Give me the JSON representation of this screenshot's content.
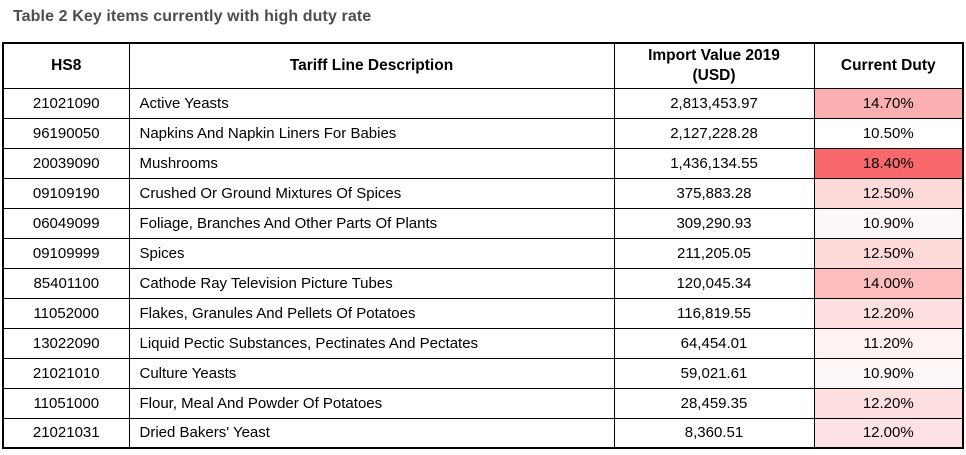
{
  "title": "Table 2 Key items currently with high duty rate",
  "colors": {
    "title_text": "#4d4d4d",
    "table_border": "#000000",
    "duty_scale_min": "#FFFFFF",
    "duty_scale_max": "#F8696B"
  },
  "table": {
    "columns": [
      "HS8",
      "Tariff Line Description",
      "Import Value 2019 (USD)",
      "Current Duty"
    ],
    "rows": [
      {
        "hs8": "21021090",
        "description": "Active Yeasts",
        "import_value": "2,813,453.97",
        "duty": "14.70%",
        "duty_bg": "#FBAFB0"
      },
      {
        "hs8": "96190050",
        "description": "Napkins And Napkin Liners For Babies",
        "import_value": "2,127,228.28",
        "duty": "10.50%",
        "duty_bg": "#FFFFFF"
      },
      {
        "hs8": "20039090",
        "description": "Mushrooms",
        "import_value": "1,436,134.55",
        "duty": "18.40%",
        "duty_bg": "#F8696B"
      },
      {
        "hs8": "09109190",
        "description": "Crushed Or Ground Mixtures Of Spices",
        "import_value": "375,883.28",
        "duty": "12.50%",
        "duty_bg": "#FDD9D9"
      },
      {
        "hs8": "06049099",
        "description": "Foliage, Branches And Other Parts Of Plants",
        "import_value": "309,290.93",
        "duty": "10.90%",
        "duty_bg": "#FEF7F7"
      },
      {
        "hs8": "09109999",
        "description": "Spices",
        "import_value": "211,205.05",
        "duty": "12.50%",
        "duty_bg": "#FDD9D9"
      },
      {
        "hs8": "85401100",
        "description": "Cathode Ray Television Picture Tubes",
        "import_value": "120,045.34",
        "duty": "14.00%",
        "duty_bg": "#FCBDBD"
      },
      {
        "hs8": "11052000",
        "description": "Flakes, Granules And Pellets Of Potatoes",
        "import_value": "116,819.55",
        "duty": "12.20%",
        "duty_bg": "#FDDFDF"
      },
      {
        "hs8": "13022090",
        "description": "Liquid Pectic Substances, Pectinates And Pectates",
        "import_value": "64,454.01",
        "duty": "11.20%",
        "duty_bg": "#FEF2F2"
      },
      {
        "hs8": "21021010",
        "description": "Culture Yeasts",
        "import_value": "59,021.61",
        "duty": "10.90%",
        "duty_bg": "#FEF7F7"
      },
      {
        "hs8": "11051000",
        "description": "Flour, Meal And Powder Of Potatoes",
        "import_value": "28,459.35",
        "duty": "12.20%",
        "duty_bg": "#FDDFDF"
      },
      {
        "hs8": "21021031",
        "description": "Dried Bakers' Yeast",
        "import_value": "8,360.51",
        "duty": "12.00%",
        "duty_bg": "#FDE2E3"
      }
    ]
  }
}
